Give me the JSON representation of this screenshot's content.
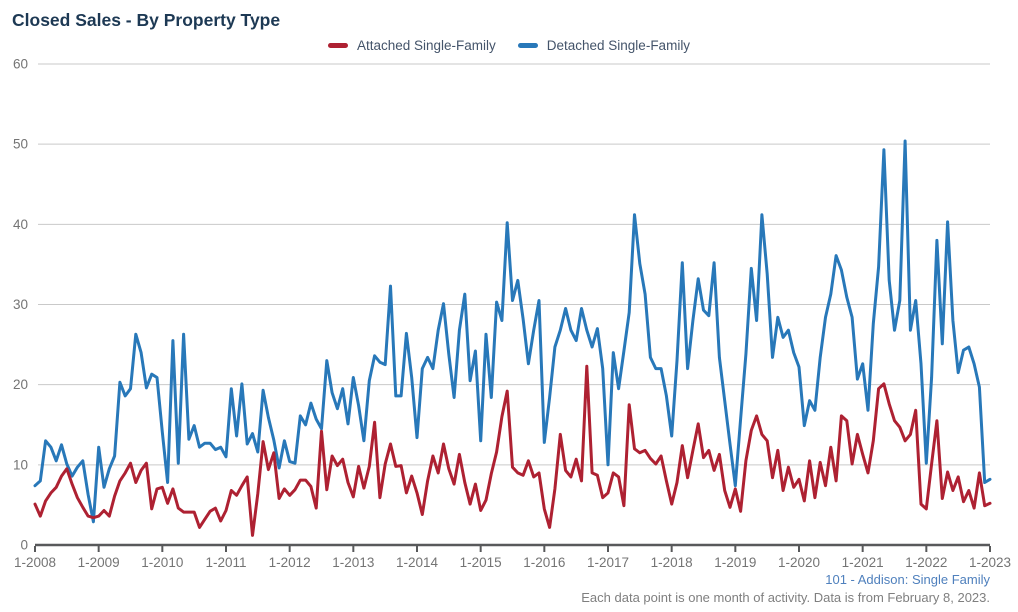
{
  "title": "Closed Sales - By Property Type",
  "legend": [
    {
      "label": "Attached Single-Family",
      "color": "#ae2132"
    },
    {
      "label": "Detached Single-Family",
      "color": "#2878b9"
    }
  ],
  "footer": {
    "line1": "101 - Addison: Single Family",
    "line2": "Each data point is one month of activity. Data is from February 8, 2023."
  },
  "colors": {
    "grid": "#c9c9c9",
    "axis": "#58595b",
    "tick_label": "#747474",
    "title": "#1d3954",
    "footer_accent": "#4f80bd",
    "footer_gray": "#7f7f7f"
  },
  "chart_data": {
    "type": "line",
    "title": "Closed Sales - By Property Type",
    "x_start": "1-2008",
    "x_end": "1-2023",
    "interval": "monthly",
    "months_total": 181,
    "ylim": [
      0,
      60
    ],
    "yticks": [
      0,
      10,
      20,
      30,
      40,
      50,
      60
    ],
    "xticks": [
      "1-2008",
      "1-2009",
      "1-2010",
      "1-2011",
      "1-2012",
      "1-2013",
      "1-2014",
      "1-2015",
      "1-2016",
      "1-2017",
      "1-2018",
      "1-2019",
      "1-2020",
      "1-2021",
      "1-2022",
      "1-2023"
    ],
    "grid": true,
    "legend_position": "top-center",
    "series": [
      {
        "name": "Attached Single-Family",
        "color": "#ae2132",
        "values": [
          5.1,
          3.6,
          5.5,
          6.5,
          7.2,
          8.6,
          9.5,
          7.6,
          5.9,
          4.7,
          3.6,
          3.4,
          3.6,
          4.3,
          3.6,
          6.1,
          8,
          9,
          10.2,
          7.8,
          9.3,
          10.2,
          4.5,
          7,
          7.2,
          5.2,
          7,
          4.6,
          4.1,
          4.1,
          4.1,
          2.2,
          3.2,
          4.2,
          4.6,
          3,
          4.3,
          6.8,
          6.2,
          7.4,
          8.5,
          1.2,
          6.4,
          12.9,
          9.4,
          11.5,
          5.8,
          7,
          6.2,
          6.9,
          8.1,
          8.1,
          7.3,
          4.6,
          14.2,
          6.9,
          11.1,
          9.9,
          10.7,
          7.8,
          6,
          9.8,
          7.1,
          9.8,
          15.3,
          5.9,
          10.1,
          12.6,
          9.8,
          9.9,
          6.5,
          8.6,
          6.5,
          3.8,
          8,
          11.1,
          9,
          12.6,
          9.5,
          7.6,
          11.3,
          7.8,
          5.1,
          7.6,
          4.3,
          5.6,
          8.9,
          11.6,
          16,
          19.2,
          9.7,
          9,
          8.7,
          10.5,
          8.5,
          9,
          4.5,
          2.2,
          7,
          13.8,
          9.3,
          8.5,
          10.7,
          8,
          22.3,
          9,
          8.7,
          5.9,
          6.5,
          9,
          8.5,
          4.9,
          17.5,
          12,
          11.5,
          11.8,
          10.8,
          10.1,
          11.1,
          8,
          5.1,
          7.8,
          12.4,
          8.4,
          11.8,
          15.1,
          10.9,
          11.8,
          9.3,
          11.3,
          6.8,
          4.7,
          7,
          4.2,
          10.5,
          14.3,
          16.1,
          13.8,
          13,
          8.4,
          11.8,
          6.8,
          9.7,
          7.2,
          8.2,
          5.5,
          10.5,
          5.9,
          10.3,
          7.4,
          12.2,
          8,
          16.1,
          15.5,
          10.1,
          13.8,
          11.3,
          9,
          13,
          19.5,
          20.1,
          17.6,
          15.5,
          14.7,
          13,
          13.8,
          16.8,
          5.1,
          4.5,
          10.1,
          15.5,
          5.8,
          9.1,
          6.8,
          8.5,
          5.4,
          6.8,
          4.6,
          9,
          4.9,
          5.2
        ]
      },
      {
        "name": "Detached Single-Family",
        "color": "#2878b9",
        "values": [
          7.4,
          8,
          13,
          12.2,
          10.5,
          12.5,
          10.1,
          8.6,
          9.7,
          10.5,
          6.3,
          2.9,
          12.2,
          7.2,
          9.5,
          11.1,
          20.3,
          18.6,
          19.5,
          26.3,
          24,
          19.6,
          21.3,
          20.9,
          14.1,
          7.8,
          25.5,
          10.2,
          26.3,
          13.2,
          14.9,
          12.2,
          12.7,
          12.7,
          11.9,
          12.2,
          11,
          19.5,
          13.6,
          20.1,
          12.6,
          13.9,
          11.6,
          19.3,
          15.9,
          13.1,
          9.6,
          13,
          10.4,
          10.2,
          16.1,
          15,
          17.7,
          15.7,
          14.5,
          23,
          19,
          17,
          19.5,
          15.1,
          20.9,
          17.4,
          13,
          20.5,
          23.6,
          22.8,
          22.5,
          32.3,
          18.6,
          18.6,
          26.4,
          20.9,
          13.4,
          22,
          23.4,
          22,
          26.8,
          30.1,
          23.8,
          18.4,
          26.8,
          31.3,
          20.5,
          24.2,
          13,
          26.3,
          18.4,
          30.3,
          28,
          40.2,
          30.5,
          33,
          28.2,
          22.6,
          26.8,
          30.5,
          12.8,
          18.4,
          24.7,
          26.8,
          29.5,
          26.8,
          25.5,
          29.5,
          26.8,
          24.7,
          27,
          22,
          10,
          24,
          19.5,
          24.2,
          29,
          41.2,
          35.1,
          31.3,
          23.4,
          22,
          22,
          18.6,
          13.6,
          23,
          35.2,
          22,
          28,
          33.2,
          29.3,
          28.6,
          35.2,
          23.4,
          18,
          12.6,
          7.4,
          15.7,
          23.8,
          34.5,
          28,
          41.2,
          33.8,
          23.4,
          28.4,
          25.9,
          26.8,
          24,
          22.2,
          14.9,
          18,
          16.8,
          23.4,
          28.4,
          31.3,
          36.1,
          34.3,
          30.9,
          28.4,
          20.7,
          22.6,
          16.8,
          27.6,
          34.7,
          49.3,
          33,
          26.8,
          30.5,
          50.4,
          26.8,
          30.5,
          22.6,
          10.2,
          20.9,
          38,
          25.1,
          40.3,
          28,
          21.5,
          24.3,
          24.7,
          22.6,
          19.7,
          7.8,
          8.2
        ]
      }
    ]
  }
}
